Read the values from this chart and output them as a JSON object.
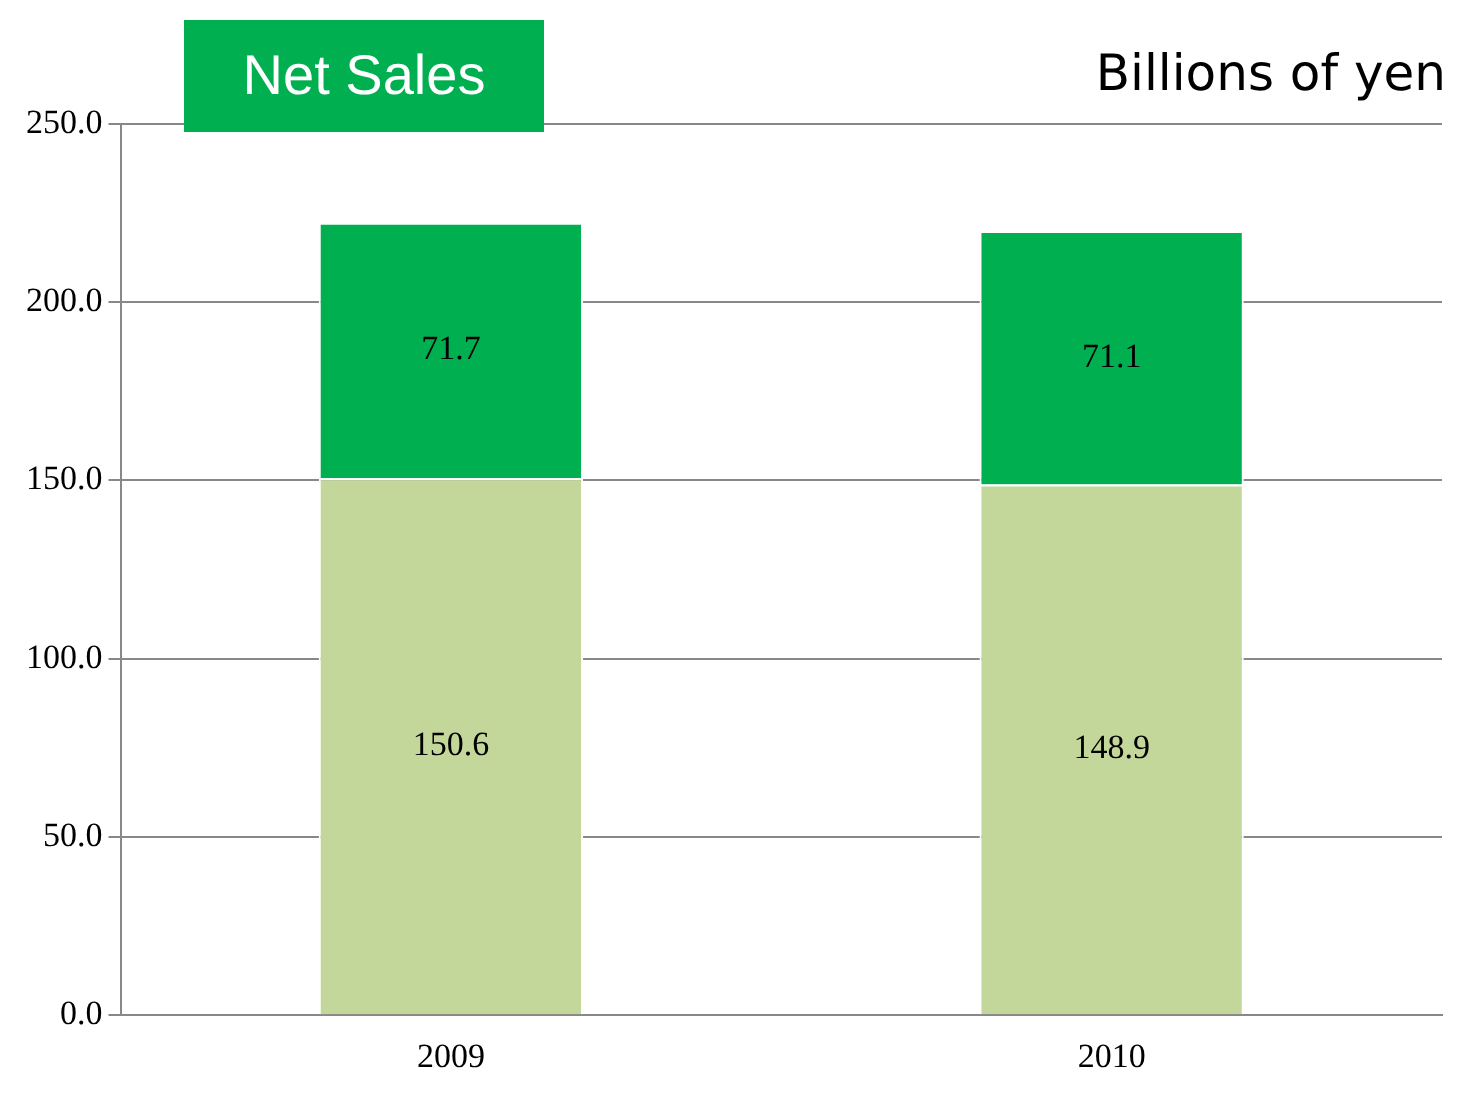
{
  "chart_data": {
    "type": "bar",
    "title": "Net Sales",
    "ylabel": "Billions of yen",
    "categories": [
      "2009",
      "2010"
    ],
    "stacked": true,
    "data_labels": true,
    "grid": "y",
    "legend": false,
    "series": [
      {
        "color": "#c4d79b",
        "values": [
          150.6,
          148.9
        ]
      },
      {
        "color": "#00b050",
        "values": [
          71.7,
          71.1
        ]
      }
    ],
    "ylim": [
      0,
      250
    ],
    "yticks": [
      {
        "value": 0,
        "label": "0.0"
      },
      {
        "value": 50,
        "label": "50.0"
      },
      {
        "value": 100,
        "label": "100.0"
      },
      {
        "value": 150,
        "label": "150.0"
      },
      {
        "value": 200,
        "label": "200.0"
      },
      {
        "value": 250,
        "label": "250.0"
      }
    ]
  }
}
